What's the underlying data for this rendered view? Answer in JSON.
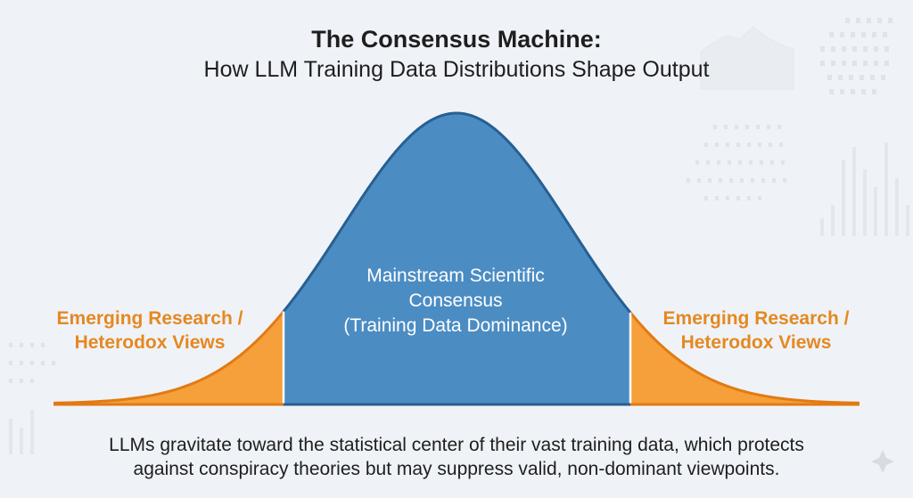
{
  "header": {
    "title": "The Consensus Machine:",
    "subtitle": "How LLM Training Data Distributions Shape Output"
  },
  "chart_data": {
    "type": "area",
    "regions": [
      {
        "name": "left_tail",
        "lines": [
          "Emerging Research /",
          "Heterodox Views"
        ],
        "color": "#f5a03a"
      },
      {
        "name": "center",
        "lines": [
          "Mainstream Scientific",
          "Consensus",
          "(Training Data Dominance)"
        ],
        "color": "#4b8cc3"
      },
      {
        "name": "right_tail",
        "lines": [
          "Emerging Research /",
          "Heterodox Views"
        ],
        "color": "#f5a03a"
      }
    ],
    "outline_colors": {
      "curve": "#275f92",
      "tail_edge": "#e27a14"
    }
  },
  "caption": {
    "lines": [
      "LLMs gravitate toward the statistical center of their vast training data, which protects",
      "against conspiracy theories but may suppress valid, non-dominant viewpoints."
    ]
  }
}
